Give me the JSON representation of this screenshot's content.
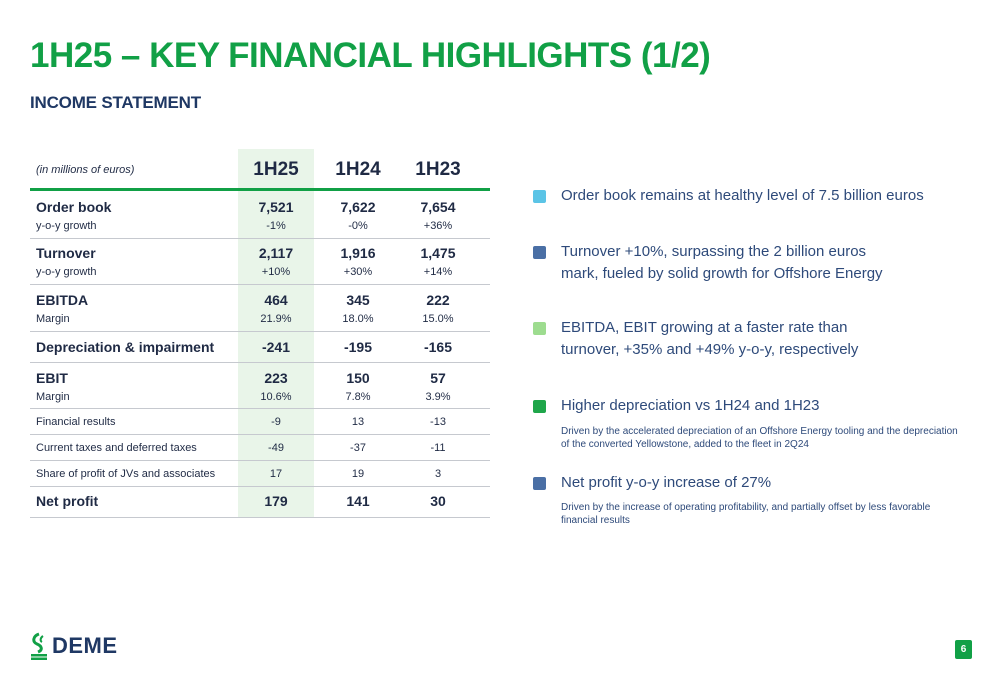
{
  "title": "1H25 – KEY FINANCIAL HIGHLIGHTS (1/2)",
  "subtitle": "INCOME STATEMENT",
  "table": {
    "unit_label": "(in millions of euros)",
    "columns": [
      "1H25",
      "1H24",
      "1H23"
    ],
    "rows": {
      "order_book": {
        "label": "Order book",
        "sub_label": "y-o-y growth",
        "values": [
          "7,521",
          "7,622",
          "7,654"
        ],
        "sub_values": [
          "-1%",
          "-0%",
          "+36%"
        ]
      },
      "turnover": {
        "label": "Turnover",
        "sub_label": "y-o-y growth",
        "values": [
          "2,117",
          "1,916",
          "1,475"
        ],
        "sub_values": [
          "+10%",
          "+30%",
          "+14%"
        ]
      },
      "ebitda": {
        "label": "EBITDA",
        "sub_label": "Margin",
        "values": [
          "464",
          "345",
          "222"
        ],
        "sub_values": [
          "21.9%",
          "18.0%",
          "15.0%"
        ]
      },
      "depreciation": {
        "label": "Depreciation & impairment",
        "values": [
          "-241",
          "-195",
          "-165"
        ]
      },
      "ebit": {
        "label": "EBIT",
        "sub_label": "Margin",
        "values": [
          "223",
          "150",
          "57"
        ],
        "sub_values": [
          "10.6%",
          "7.8%",
          "3.9%"
        ]
      },
      "financial_results": {
        "label": "Financial results",
        "values": [
          "-9",
          "13",
          "-13"
        ]
      },
      "taxes": {
        "label": "Current taxes and deferred taxes",
        "values": [
          "-49",
          "-37",
          "-11"
        ]
      },
      "jv_share": {
        "label": "Share of profit of JVs and associates",
        "values": [
          "17",
          "19",
          "3"
        ]
      },
      "net_profit": {
        "label": "Net profit",
        "values": [
          "179",
          "141",
          "30"
        ]
      }
    }
  },
  "bullets": [
    {
      "text": "Order book remains at healthy level of 7.5 billion euros",
      "sub": "",
      "color": "#5bc4e6"
    },
    {
      "text": "Turnover +10%, surpassing the 2 billion euros mark, fueled by solid growth for Offshore Energy",
      "sub": "",
      "color": "#4a6fa5"
    },
    {
      "text": "EBITDA, EBIT growing at a faster rate than turnover, +35% and +49% y-o-y, respectively",
      "sub": "",
      "color": "#9ddc8f"
    },
    {
      "text": "Higher depreciation vs 1H24 and 1H23",
      "sub": "Driven by the accelerated depreciation of an Offshore Energy tooling and the depreciation of the converted Yellowstone, added to the fleet in 2Q24",
      "color": "#1fa64a"
    },
    {
      "text": "Net profit y-o-y increase of 27%",
      "sub": "Driven by the increase of operating profitability, and partially offset by less favorable financial results",
      "color": "#4a6fa5"
    }
  ],
  "footer": {
    "logo_text": "DEME",
    "page_number": "6"
  },
  "colors": {
    "accent_green": "#11a046",
    "navy": "#1f3864",
    "highlight_column": "#e9f5e9"
  }
}
